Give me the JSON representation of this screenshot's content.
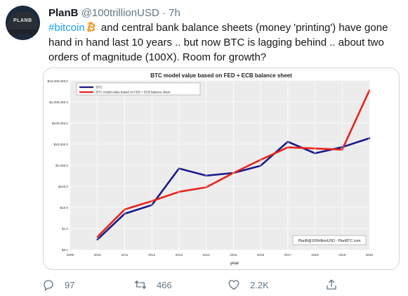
{
  "tweet": {
    "author_name": "PlanB",
    "author_handle": "@100trillionUSD",
    "separator": "·",
    "time": "7h",
    "avatar_text": "PLANB",
    "hashtag": "#bitcoin",
    "text_after_hashtag": "and central bank balance sheets (money 'printing') have gone hand in hand last 10 years .. but now BTC is lagging behind .. about two orders of magnitude (100X). Room for growth?"
  },
  "actions": {
    "replies": "97",
    "retweets": "466",
    "likes": "2.2K"
  },
  "colors": {
    "btc_series": "#1a1a8c",
    "model_series": "#e8231b",
    "hashtag": "#1da1f2",
    "bitcoin_orange": "#f7931a",
    "muted": "#657786"
  },
  "chart_data": {
    "type": "line",
    "title": "BTC model value based on FED + ECB balance sheet",
    "xlabel": "year",
    "ylabel": "",
    "yscale": "log",
    "xlim": [
      2009,
      2020
    ],
    "ylim": [
      0.1,
      10000000
    ],
    "x_ticks": [
      "2009",
      "2010",
      "2011",
      "2012",
      "2013",
      "2014",
      "2015",
      "2016",
      "2017",
      "2018",
      "2019",
      "2020"
    ],
    "y_ticks": [
      "$0.1",
      "$1.0",
      "$10.0",
      "$100.0",
      "$1,000.0",
      "$10,000.0",
      "$100,000.0",
      "$1,000,000.0",
      "$10,000,000.0"
    ],
    "legend_position": "top-left",
    "watermark": "PlanB@100trillionUSD - PlanBTC.com",
    "grid": true,
    "series": [
      {
        "name": "BTC",
        "color": "#1a1a8c",
        "x": [
          2010,
          2011,
          2012,
          2013,
          2014,
          2015,
          2016,
          2017,
          2018,
          2019,
          2020
        ],
        "values": [
          0.3,
          5,
          13,
          700,
          320,
          430,
          950,
          13000,
          3700,
          7200,
          19000
        ]
      },
      {
        "name": "BTC model value based on FED + ECB balance sheet",
        "color": "#e8231b",
        "x": [
          2010,
          2011,
          2012,
          2013,
          2014,
          2015,
          2016,
          2017,
          2018,
          2019,
          2020
        ],
        "values": [
          0.4,
          8,
          20,
          55,
          90,
          430,
          1800,
          7000,
          6200,
          5500,
          3500000
        ]
      }
    ]
  }
}
